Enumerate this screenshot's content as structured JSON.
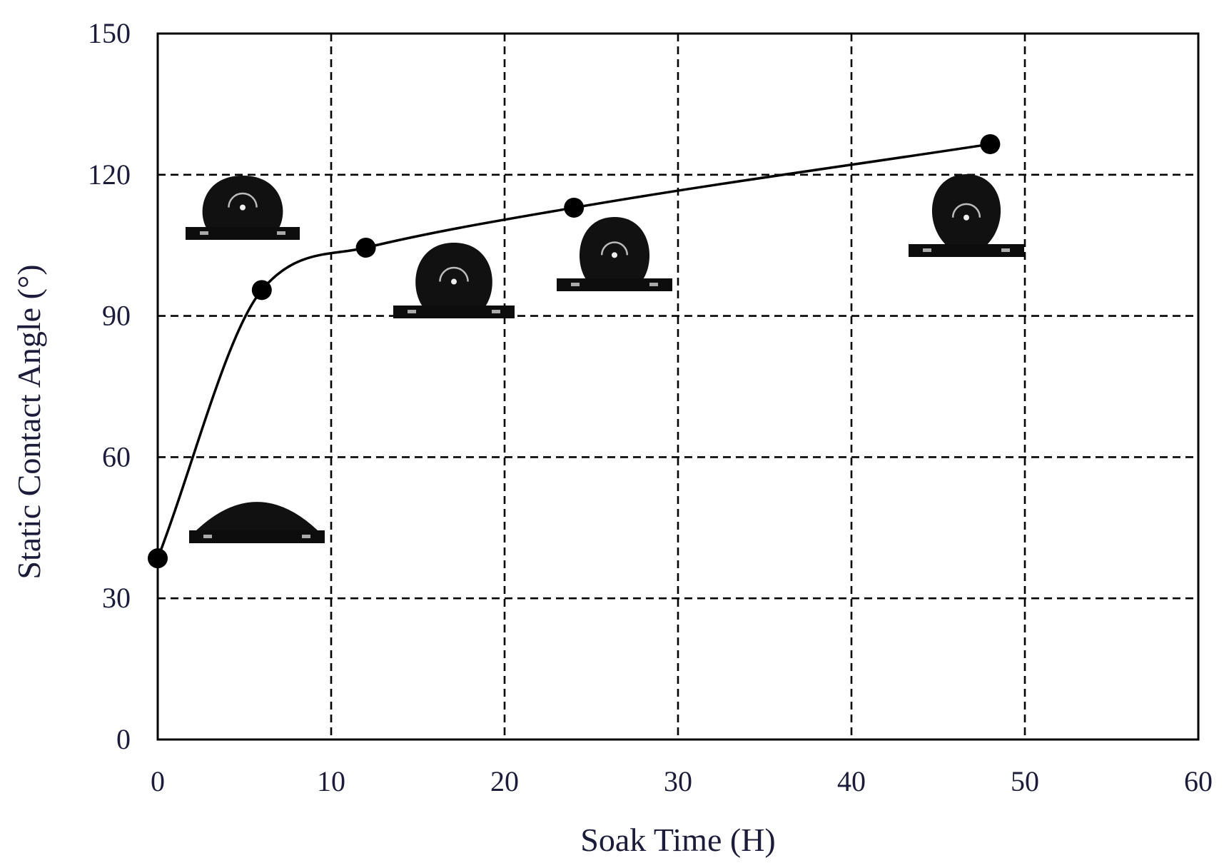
{
  "chart_data": {
    "type": "line",
    "xlabel": "Soak Time (H)",
    "ylabel": "Static Contact Angle (°)",
    "xlim": [
      0,
      60
    ],
    "ylim": [
      0,
      150
    ],
    "xticks": [
      0,
      10,
      20,
      30,
      40,
      50,
      60
    ],
    "yticks": [
      0,
      30,
      60,
      90,
      120,
      150
    ],
    "xtick_labels": [
      "0",
      "10",
      "20",
      "30",
      "40",
      "50",
      "60"
    ],
    "ytick_labels": [
      "0",
      "30",
      "60",
      "90",
      "120",
      "150"
    ],
    "grid": "dashed",
    "x_gridlines": [
      10,
      20,
      30,
      40,
      50
    ],
    "y_gridlines": [
      30,
      60,
      90,
      120
    ],
    "series": [
      {
        "x": [
          0,
          6,
          12,
          24,
          48
        ],
        "y": [
          38.5,
          95.5,
          104.5,
          113,
          126.5
        ],
        "smooth": true,
        "marker": "circle",
        "color": "#000000"
      }
    ],
    "inset_images": [
      {
        "depicts": "droplet-photo",
        "near_x": 0,
        "contact_angle": 38.5
      },
      {
        "depicts": "droplet-photo",
        "near_x": 6,
        "contact_angle": 95.5
      },
      {
        "depicts": "droplet-photo",
        "near_x": 12,
        "contact_angle": 104.5
      },
      {
        "depicts": "droplet-photo",
        "near_x": 24,
        "contact_angle": 113
      },
      {
        "depicts": "droplet-photo",
        "near_x": 48,
        "contact_angle": 126.5
      }
    ]
  }
}
